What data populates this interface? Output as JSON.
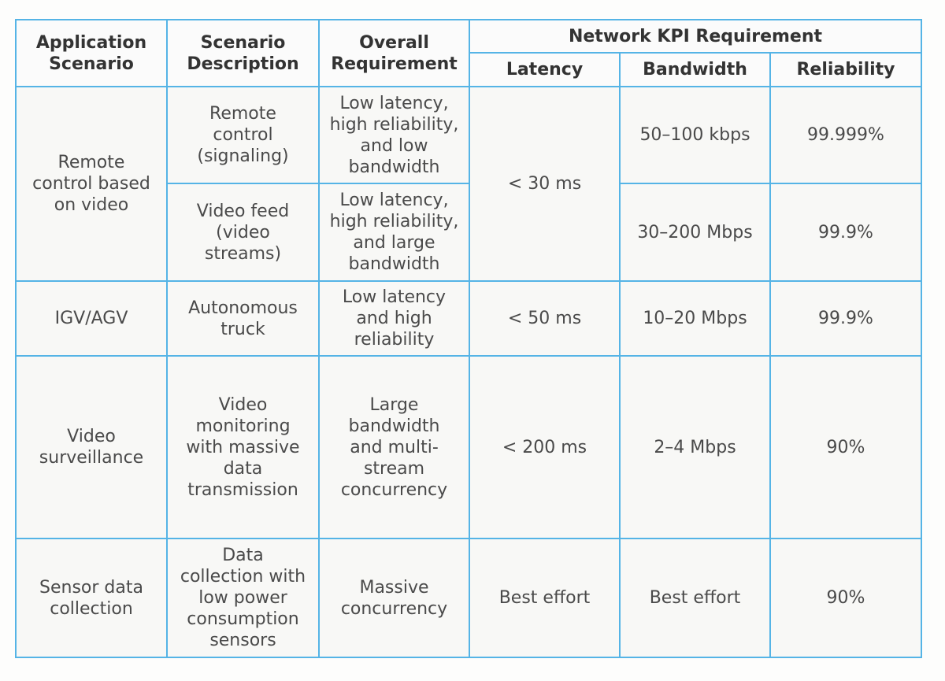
{
  "table": {
    "header": {
      "application_scenario": [
        "Application",
        "Scenario"
      ],
      "scenario_description": [
        "Scenario",
        "Description"
      ],
      "overall_requirement": [
        "Overall",
        "Requirement"
      ],
      "network_kpi_requirement": "Network KPI Requirement",
      "latency": "Latency",
      "bandwidth": "Bandwidth",
      "reliability": "Reliability"
    },
    "rows": [
      {
        "application_scenario": [
          "Remote",
          "control based",
          "on video"
        ],
        "latency": "< 30 ms",
        "subrows": [
          {
            "scenario_description": [
              "Remote",
              "control",
              "(signaling)"
            ],
            "overall_requirement": [
              "Low latency,",
              "high reliability,",
              "and low",
              "bandwidth"
            ],
            "bandwidth": "50–100 kbps",
            "reliability": "99.999%"
          },
          {
            "scenario_description": [
              "Video feed",
              "(video",
              "streams)"
            ],
            "overall_requirement": [
              "Low latency,",
              "high reliability,",
              "and large",
              "bandwidth"
            ],
            "bandwidth": "30–200 Mbps",
            "reliability": "99.9%"
          }
        ]
      },
      {
        "application_scenario": [
          "IGV/AGV"
        ],
        "latency": "< 50 ms",
        "subrows": [
          {
            "scenario_description": [
              "Autonomous",
              "truck"
            ],
            "overall_requirement": [
              "Low latency",
              "and high",
              "reliability"
            ],
            "bandwidth": "10–20 Mbps",
            "reliability": "99.9%"
          }
        ]
      },
      {
        "application_scenario": [
          "Video",
          "surveillance"
        ],
        "latency": "< 200 ms",
        "subrows": [
          {
            "scenario_description": [
              "Video",
              "monitoring",
              "with massive",
              "data",
              "transmission"
            ],
            "overall_requirement": [
              "Large",
              "bandwidth",
              "and multi-",
              "stream",
              "concurrency"
            ],
            "bandwidth": "2–4 Mbps",
            "reliability": "90%"
          }
        ]
      },
      {
        "application_scenario": [
          "Sensor data",
          "collection"
        ],
        "latency": "Best effort",
        "subrows": [
          {
            "scenario_description": [
              "Data",
              "collection with",
              "low power",
              "consumption",
              "sensors"
            ],
            "overall_requirement": [
              "Massive",
              "concurrency"
            ],
            "bandwidth": "Best effort",
            "reliability": "90%"
          }
        ]
      }
    ]
  }
}
